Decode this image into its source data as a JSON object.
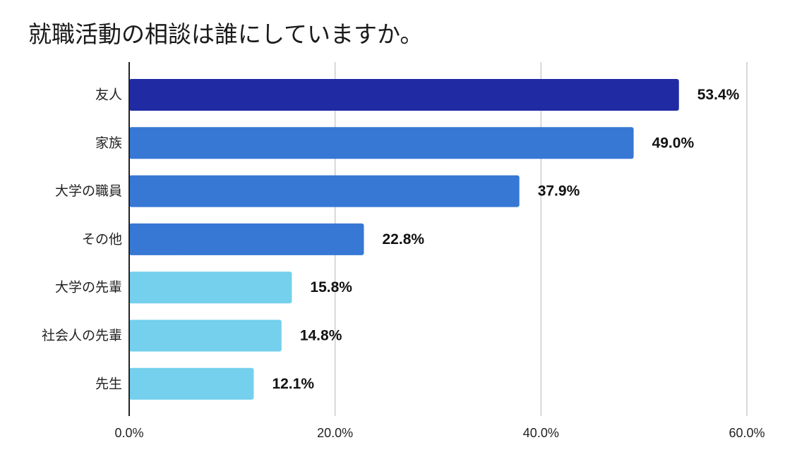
{
  "chart_data": {
    "type": "bar",
    "orientation": "horizontal",
    "title": "就職活動の相談は誰にしていますか。",
    "categories": [
      "友人",
      "家族",
      "大学の職員",
      "その他",
      "大学の先輩",
      "社会人の先輩",
      "先生"
    ],
    "values": [
      53.4,
      49.0,
      37.9,
      22.8,
      15.8,
      14.8,
      12.1
    ],
    "value_labels": [
      "53.4%",
      "49.0%",
      "37.9%",
      "22.8%",
      "15.8%",
      "14.8%",
      "12.1%"
    ],
    "bar_colors": [
      "#1f2aa3",
      "#3678d4",
      "#3678d4",
      "#3678d4",
      "#74d0ec",
      "#74d0ec",
      "#74d0ec"
    ],
    "xlim": [
      0,
      60
    ],
    "xticks": [
      0,
      20,
      40,
      60
    ],
    "xtick_labels": [
      "0.0%",
      "20.0%",
      "40.0%",
      "60.0%"
    ],
    "xlabel": "",
    "ylabel": "",
    "grid": true,
    "legend": "none"
  },
  "colors": {
    "grid": "#cccccc",
    "axis": "#222222"
  }
}
